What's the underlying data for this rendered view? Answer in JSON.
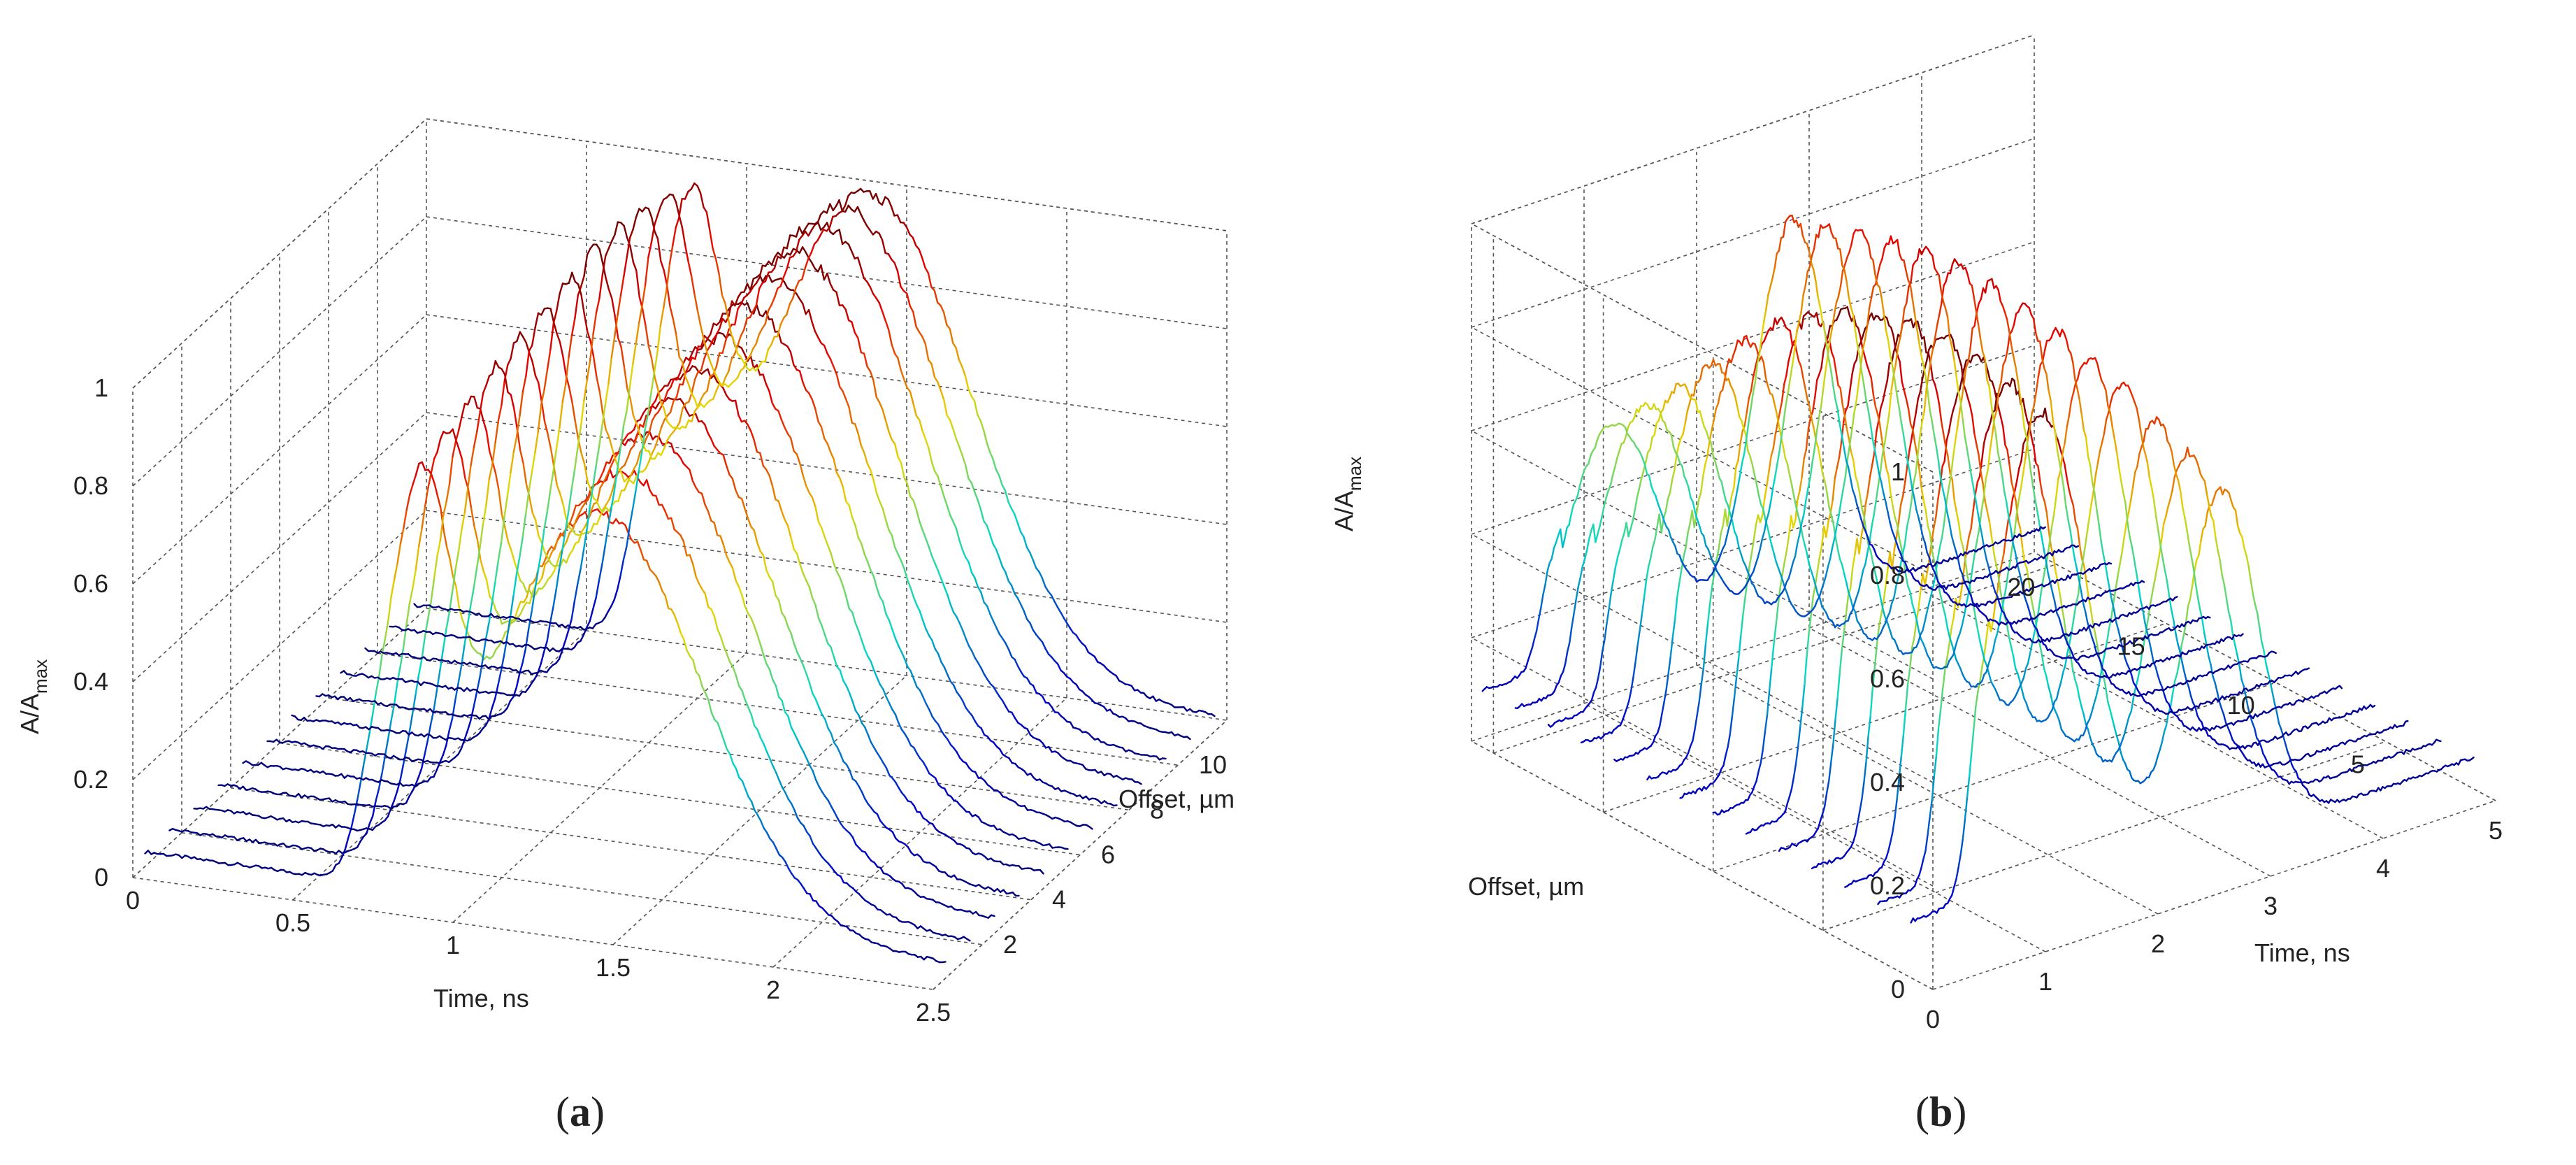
{
  "chart_data": [
    {
      "panel": "a",
      "caption": "(a)",
      "caption_bold": "a",
      "type": "waterfall-3d-line",
      "x_axis": {
        "label": "Time, ns",
        "range": [
          0,
          2.5
        ],
        "ticks": [
          "0",
          "0.5",
          "1",
          "1.5",
          "2",
          "2.5"
        ]
      },
      "y_axis": {
        "label": "Offset, µm",
        "range": [
          0,
          12
        ],
        "ticks": [
          "2",
          "4",
          "6",
          "8",
          "10"
        ]
      },
      "z_axis": {
        "label_main": "A/A",
        "label_sub": "max",
        "range": [
          0,
          1
        ],
        "ticks": [
          "0",
          "0.2",
          "0.4",
          "0.6",
          "0.8",
          "1"
        ]
      },
      "grid": true,
      "colormap": "jet",
      "series": [
        {
          "offset": 0.5,
          "peak1": 0.74,
          "peak2": 0.82
        },
        {
          "offset": 1.5,
          "peak1": 0.76,
          "peak2": 0.86
        },
        {
          "offset": 2.5,
          "peak1": 0.77,
          "peak2": 0.89
        },
        {
          "offset": 3.5,
          "peak1": 0.79,
          "peak2": 0.91
        },
        {
          "offset": 4.5,
          "peak1": 0.8,
          "peak2": 0.93
        },
        {
          "offset": 5.5,
          "peak1": 0.81,
          "peak2": 0.95
        },
        {
          "offset": 6.5,
          "peak1": 0.82,
          "peak2": 0.97
        },
        {
          "offset": 7.5,
          "peak1": 0.83,
          "peak2": 0.98
        },
        {
          "offset": 8.5,
          "peak1": 0.83,
          "peak2": 0.99
        },
        {
          "offset": 9.5,
          "peak1": 0.82,
          "peak2": 1.0
        },
        {
          "offset": 10.5,
          "peak1": 0.8,
          "peak2": 0.99
        },
        {
          "offset": 11.5,
          "peak1": 0.78,
          "peak2": 0.97
        }
      ]
    },
    {
      "panel": "b",
      "caption": "(b)",
      "caption_bold": "b",
      "type": "waterfall-3d-line",
      "x_axis": {
        "label": "Time, ns",
        "range": [
          0,
          5
        ],
        "ticks": [
          "0",
          "1",
          "2",
          "3",
          "4",
          "5"
        ]
      },
      "y_axis": {
        "label": "Offset, µm",
        "range": [
          0,
          21
        ],
        "ticks": [
          "5",
          "10",
          "15",
          "20"
        ]
      },
      "z_axis": {
        "label_main": "A/A",
        "label_sub": "max",
        "range": [
          0,
          1
        ],
        "ticks": [
          "0",
          "0.2",
          "0.4",
          "0.6",
          "0.8",
          "1"
        ]
      },
      "grid": true,
      "colormap": "jet",
      "series": [
        {
          "offset": 1,
          "peak1": 0.95,
          "peak2": 0.68
        },
        {
          "offset": 2.5,
          "peak1": 0.97,
          "peak2": 0.72
        },
        {
          "offset": 4,
          "peak1": 0.99,
          "peak2": 0.75
        },
        {
          "offset": 5.5,
          "peak1": 1.0,
          "peak2": 0.78
        },
        {
          "offset": 7,
          "peak1": 0.99,
          "peak2": 0.8
        },
        {
          "offset": 8.5,
          "peak1": 0.97,
          "peak2": 0.82
        },
        {
          "offset": 10,
          "peak1": 0.94,
          "peak2": 0.83
        },
        {
          "offset": 11.5,
          "peak1": 0.9,
          "peak2": 0.84
        },
        {
          "offset": 13,
          "peak1": 0.85,
          "peak2": 0.85
        },
        {
          "offset": 14.5,
          "peak1": 0.78,
          "peak2": 0.84
        },
        {
          "offset": 16,
          "peak1": 0.7,
          "peak2": 0.82
        },
        {
          "offset": 17.5,
          "peak1": 0.62,
          "peak2": 0.8
        },
        {
          "offset": 19,
          "peak1": 0.55,
          "peak2": 0.78
        },
        {
          "offset": 20.5,
          "peak1": 0.48,
          "peak2": 0.76
        }
      ]
    }
  ]
}
